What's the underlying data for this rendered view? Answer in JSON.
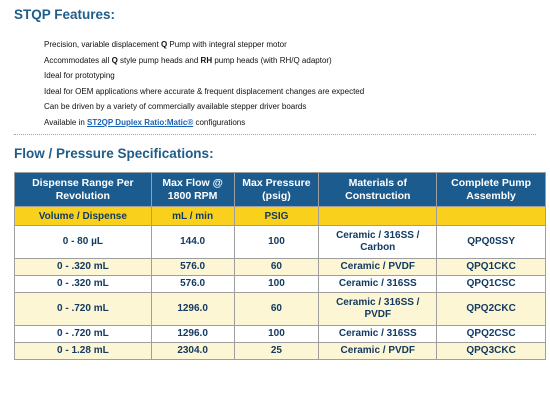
{
  "features": {
    "title": "STQP Features:",
    "items": [
      {
        "parts": [
          {
            "t": "Precision, variable displacement "
          },
          {
            "t": "Q",
            "b": true
          },
          {
            "t": " Pump with integral stepper motor"
          }
        ]
      },
      {
        "parts": [
          {
            "t": "Accommodates all "
          },
          {
            "t": "Q",
            "b": true
          },
          {
            "t": " style pump heads and "
          },
          {
            "t": "RH",
            "b": true
          },
          {
            "t": " pump heads (with RH/Q adaptor)"
          }
        ]
      },
      {
        "parts": [
          {
            "t": "Ideal for prototyping"
          }
        ]
      },
      {
        "parts": [
          {
            "t": "Ideal for OEM applications where accurate & frequent displacement changes are expected"
          }
        ]
      },
      {
        "parts": [
          {
            "t": "Can be driven by a variety of commercially available stepper driver boards"
          }
        ]
      },
      {
        "parts": [
          {
            "t": "Available in "
          },
          {
            "t": "ST2QP Duplex Ratio:Matic®",
            "link": true
          },
          {
            "t": " configurations"
          }
        ]
      }
    ]
  },
  "flow": {
    "title": "Flow / Pressure Specifications:"
  },
  "table": {
    "headers": [
      "Dispense Range Per Revolution",
      "Max Flow @ 1800 RPM",
      "Max Pressure (psig)",
      "Materials of Construction",
      "Complete Pump Assembly"
    ],
    "units": [
      "Volume / Dispense",
      "mL / min",
      "PSIG",
      "",
      ""
    ],
    "rows": [
      {
        "range": "0 - 80 µL",
        "flow": "144.0",
        "pressure": "100",
        "material": "Ceramic / 316SS / Carbon",
        "assembly": "QPQ0SSY",
        "style": "white tall"
      },
      {
        "range": "0 - .320 mL",
        "flow": "576.0",
        "pressure": "60",
        "material": "Ceramic / PVDF",
        "assembly": "QPQ1CKC",
        "style": "cream short"
      },
      {
        "range": "0 - .320 mL",
        "flow": "576.0",
        "pressure": "100",
        "material": "Ceramic / 316SS",
        "assembly": "QPQ1CSC",
        "style": "white short"
      },
      {
        "range": "0 - .720 mL",
        "flow": "1296.0",
        "pressure": "60",
        "material": "Ceramic / 316SS / PVDF",
        "assembly": "QPQ2CKC",
        "style": "cream tall"
      },
      {
        "range": "0 - .720 mL",
        "flow": "1296.0",
        "pressure": "100",
        "material": "Ceramic / 316SS",
        "assembly": "QPQ2CSC",
        "style": "white short"
      },
      {
        "range": "0 - 1.28 mL",
        "flow": "2304.0",
        "pressure": "25",
        "material": "Ceramic / PVDF",
        "assembly": "QPQ3CKC",
        "style": "cream short"
      }
    ]
  }
}
